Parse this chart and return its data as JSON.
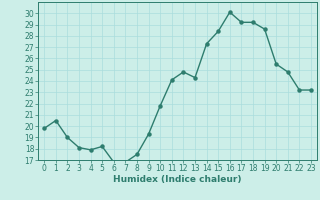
{
  "x": [
    0,
    1,
    2,
    3,
    4,
    5,
    6,
    7,
    8,
    9,
    10,
    11,
    12,
    13,
    14,
    15,
    16,
    17,
    18,
    19,
    20,
    21,
    22,
    23
  ],
  "y": [
    19.8,
    20.5,
    19.0,
    18.1,
    17.9,
    18.2,
    16.8,
    16.8,
    17.5,
    19.3,
    21.8,
    24.1,
    24.8,
    24.3,
    27.3,
    28.4,
    30.1,
    29.2,
    29.2,
    28.6,
    25.5,
    24.8,
    23.2,
    23.2
  ],
  "line_color": "#2e7d6e",
  "marker": "o",
  "marker_size": 2.2,
  "bg_color": "#cceee8",
  "grid_color": "#aadddd",
  "xlabel": "Humidex (Indice chaleur)",
  "ylim": [
    17,
    31
  ],
  "xlim": [
    -0.5,
    23.5
  ],
  "yticks": [
    17,
    18,
    19,
    20,
    21,
    22,
    23,
    24,
    25,
    26,
    27,
    28,
    29,
    30
  ],
  "xticks": [
    0,
    1,
    2,
    3,
    4,
    5,
    6,
    7,
    8,
    9,
    10,
    11,
    12,
    13,
    14,
    15,
    16,
    17,
    18,
    19,
    20,
    21,
    22,
    23
  ],
  "tick_fontsize": 5.5,
  "xlabel_fontsize": 6.5,
  "line_width": 1.0
}
